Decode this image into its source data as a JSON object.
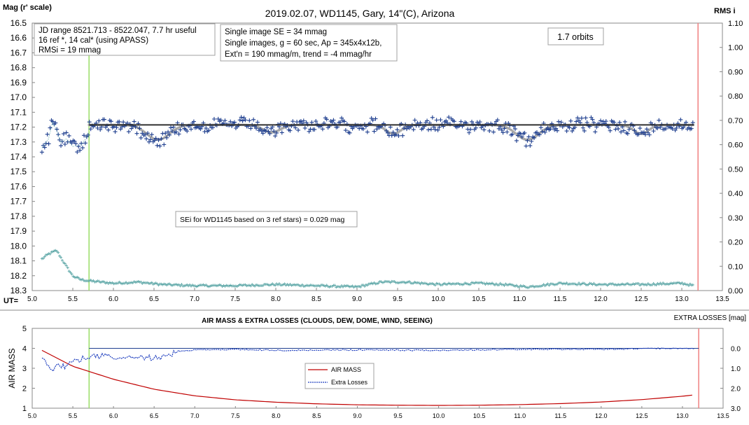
{
  "colors": {
    "wd1145": "#1f3f8f",
    "trend": "#303030",
    "model": "#a8a8a8",
    "rms": "#5fa8a8",
    "airmass": "#c00000",
    "extra_losses": "#1f3fbf",
    "start_marker": "#99dd66",
    "end_marker": "#f08080"
  },
  "chart_data": [
    {
      "type": "scatter",
      "title": "2019.02.07, WD1145, Gary, 14\"(C), Arizona",
      "ylabel": "Mag (r' scale)",
      "y2label": "RMS i",
      "xlabel": "UT=",
      "xlim": [
        5.0,
        13.5
      ],
      "ylim": [
        16.5,
        18.3
      ],
      "y_reversed": true,
      "y2lim": [
        0.0,
        1.1
      ],
      "x_ticks": [
        "5.0",
        "5.5",
        "6.0",
        "6.5",
        "7.0",
        "7.5",
        "8.0",
        "8.5",
        "9.0",
        "9.5",
        "10.0",
        "10.5",
        "11.0",
        "11.5",
        "12.0",
        "12.5",
        "13.0",
        "13.5"
      ],
      "y_ticks": [
        "16.5",
        "16.6",
        "16.7",
        "16.8",
        "16.9",
        "17.0",
        "17.1",
        "17.2",
        "17.3",
        "17.4",
        "17.5",
        "17.6",
        "17.7",
        "17.8",
        "17.9",
        "18.0",
        "18.1",
        "18.2",
        "18.3"
      ],
      "y2_ticks": [
        "1.10",
        "1.00",
        "0.90",
        "0.80",
        "0.70",
        "0.60",
        "0.50",
        "0.40",
        "0.30",
        "0.20",
        "0.10",
        "0.00"
      ],
      "grid": false,
      "annotations": {
        "box1": [
          "JD range 8521.713 - 8522.047, 7.7 hr useful",
          "16 ref *, 14 cal* (using APASS)",
          "RMSi = 19 mmag"
        ],
        "box2": [
          "Single image SE = 34 mmag",
          "Single images, g = 60 sec, Ap = 345x4x12b,",
          "Ext'n = 190 mmag/m, trend = -4 mmag/hr"
        ],
        "orbits": "1.7 orbits",
        "sei": "SEi for WD1145 based on 3 ref stars) = 0.029 mag"
      },
      "markers": {
        "start_ut": 5.7,
        "end_ut": 13.2
      },
      "trend_line": {
        "x": [
          5.7,
          13.15
        ],
        "y": [
          17.185,
          17.185
        ]
      },
      "dips": [
        {
          "center_ut": 6.55,
          "depth_mag": 0.1,
          "width_hr": 0.45
        },
        {
          "center_ut": 7.95,
          "depth_mag": 0.05,
          "width_hr": 0.35
        },
        {
          "center_ut": 9.45,
          "depth_mag": 0.06,
          "width_hr": 0.3
        },
        {
          "center_ut": 11.1,
          "depth_mag": 0.1,
          "width_hr": 0.45
        },
        {
          "center_ut": 12.5,
          "depth_mag": 0.06,
          "width_hr": 0.3
        }
      ],
      "series": [
        {
          "role": "wd1145",
          "sampling": {
            "start": 5.12,
            "end": 13.15,
            "step": 0.0167
          },
          "base": 17.185,
          "scatter_mag": 0.045,
          "early": {
            "x": [
              5.12,
              5.2,
              5.25,
              5.3,
              5.35,
              5.42,
              5.5,
              5.6,
              5.7
            ],
            "y": [
              17.34,
              17.28,
              17.17,
              17.22,
              17.3,
              17.28,
              17.33,
              17.32,
              17.25
            ]
          }
        },
        {
          "role": "model",
          "sampling": {
            "start": 5.7,
            "end": 13.15,
            "step": 0.02
          },
          "base": 17.185
        },
        {
          "role": "rms",
          "sampling": {
            "start": 5.12,
            "end": 13.15,
            "step": 0.0167
          },
          "x": [
            5.12,
            5.2,
            5.3,
            5.4,
            5.5,
            5.6,
            5.7,
            6.0,
            6.3,
            6.6,
            7.0,
            7.5,
            8.0,
            8.5,
            9.0,
            9.3,
            9.6,
            10.0,
            10.5,
            10.8,
            11.1,
            11.5,
            12.0,
            12.5,
            13.0,
            13.15
          ],
          "y": [
            0.13,
            0.15,
            0.165,
            0.11,
            0.06,
            0.045,
            0.04,
            0.03,
            0.035,
            0.025,
            0.02,
            0.02,
            0.025,
            0.02,
            0.015,
            0.035,
            0.035,
            0.025,
            0.03,
            0.025,
            0.015,
            0.03,
            0.025,
            0.025,
            0.03,
            0.02
          ]
        }
      ]
    },
    {
      "type": "line",
      "title": "AIR MASS & EXTRA LOSSES (CLOUDS, DEW, DOME, WIND, SEEING)",
      "ylabel": "AIR MASS",
      "y2label": "EXTRA LOSSES [mag]",
      "xlim": [
        5.0,
        13.5
      ],
      "ylim": [
        1,
        5
      ],
      "y2lim": [
        3.0,
        -1.0
      ],
      "x_ticks": [
        "5.0",
        "5.5",
        "6.0",
        "6.5",
        "7.0",
        "7.5",
        "8.0",
        "8.5",
        "9.0",
        "9.5",
        "10.0",
        "10.5",
        "11.0",
        "11.5",
        "12.0",
        "12.5",
        "13.0",
        "13.5"
      ],
      "y_ticks": [
        "5",
        "4",
        "3",
        "2",
        "1"
      ],
      "y2_ticks": [
        "0.0",
        "1.0",
        "2.0",
        "3.0"
      ],
      "legend": {
        "entries": [
          "AIR MASS",
          "Extra Losses"
        ],
        "placement": "center"
      },
      "markers": {
        "start_ut": 5.7,
        "end_ut": 13.2
      },
      "reference_line": {
        "x": [
          5.7,
          13.2
        ],
        "y2": 0.0
      },
      "series": [
        {
          "name": "AIR MASS",
          "axis": "left",
          "x": [
            5.12,
            5.5,
            6.0,
            6.5,
            7.0,
            7.5,
            8.0,
            8.5,
            9.0,
            9.5,
            10.0,
            10.5,
            11.0,
            11.5,
            12.0,
            12.5,
            13.0,
            13.15
          ],
          "y": [
            3.9,
            3.1,
            2.45,
            1.95,
            1.62,
            1.42,
            1.3,
            1.22,
            1.17,
            1.15,
            1.14,
            1.15,
            1.18,
            1.23,
            1.31,
            1.43,
            1.6,
            1.67
          ]
        },
        {
          "name": "Extra Losses",
          "axis": "right",
          "x": [
            5.12,
            5.2,
            5.25,
            5.3,
            5.4,
            5.5,
            5.6,
            5.7,
            5.9,
            6.1,
            6.3,
            6.5,
            6.6,
            6.8,
            7.0,
            7.5,
            8.0,
            9.0,
            10.0,
            11.0,
            12.0,
            12.5,
            13.0,
            13.15
          ],
          "y": [
            0.55,
            0.85,
            1.1,
            0.75,
            0.9,
            0.7,
            0.55,
            0.45,
            0.35,
            0.55,
            0.4,
            0.5,
            0.45,
            0.15,
            0.08,
            0.05,
            0.1,
            0.08,
            0.1,
            0.05,
            0.05,
            0.02,
            0.0,
            0.02
          ]
        }
      ]
    }
  ]
}
